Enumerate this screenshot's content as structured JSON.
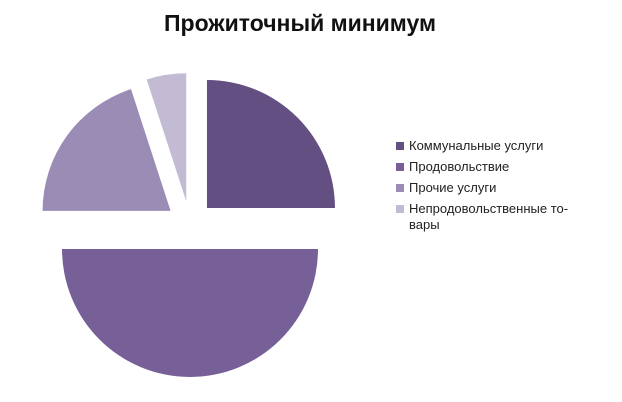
{
  "chart_data": {
    "type": "pie",
    "title": "Прожиточный минимум",
    "legend_position": "right",
    "exploded": true,
    "series": [
      {
        "name": "Коммунальные услуги",
        "value": 25,
        "color": "#644f82"
      },
      {
        "name": "Продовольствие",
        "value": 50,
        "color": "#775f98"
      },
      {
        "name": "Прочие услуги",
        "value": 20,
        "color": "#9b8cb6"
      },
      {
        "name": "Непродовольственные то-вары",
        "value": 5,
        "color": "#c2bbd3"
      }
    ]
  }
}
